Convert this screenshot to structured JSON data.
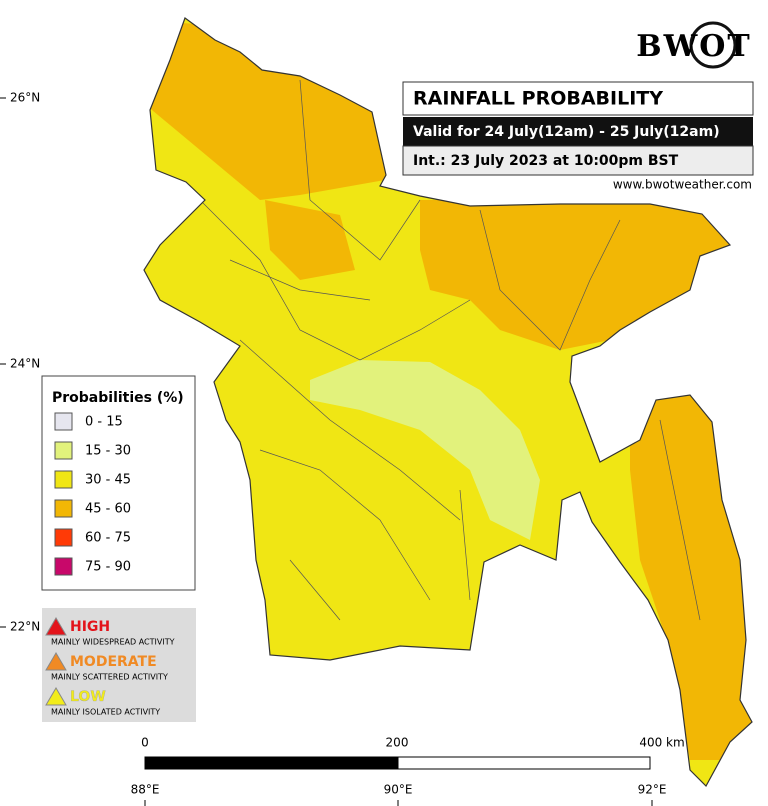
{
  "header": {
    "logo": "BWOT",
    "title": "RAINFALL PROBABILITY",
    "valid": "Valid for 24 July(12am) - 25 July(12am)",
    "issued": "Int.: 23 July 2023 at 10:00pm BST",
    "website": "www.bwotweather.com"
  },
  "legend": {
    "title": "Probabilities (%)",
    "items": [
      {
        "label": "0 - 15",
        "color": "#e6e6ef"
      },
      {
        "label": "15 - 30",
        "color": "#e2f27c"
      },
      {
        "label": "30 - 45",
        "color": "#f0e614"
      },
      {
        "label": "45 - 60",
        "color": "#f2b705"
      },
      {
        "label": "60 - 75",
        "color": "#ff3a06"
      },
      {
        "label": "75 - 90",
        "color": "#c8086a"
      }
    ]
  },
  "activity": [
    {
      "level": "HIGH",
      "description": "MAINLY WIDESPREAD ACTIVITY",
      "color": "#e3141b"
    },
    {
      "level": "MODERATE",
      "description": "MAINLY SCATTERED ACTIVITY",
      "color": "#f08a24"
    },
    {
      "level": "LOW",
      "description": "MAINLY ISOLATED ACTIVITY",
      "color": "#f2ec1a"
    }
  ],
  "axes": {
    "latitudes": [
      "26°N",
      "24°N",
      "22°N"
    ],
    "longitudes": [
      "88°E",
      "90°E",
      "92°E"
    ]
  },
  "scale_bar": {
    "labels": [
      "0",
      "200",
      "400 km"
    ]
  }
}
